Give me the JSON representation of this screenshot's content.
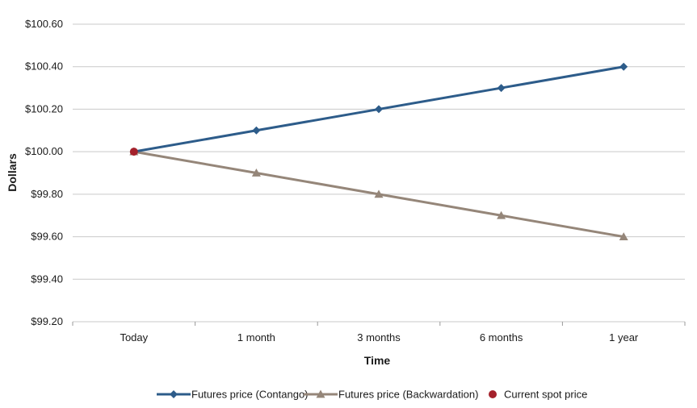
{
  "chart_data": {
    "type": "line",
    "categories": [
      "Today",
      "1 month",
      "3 months",
      "6 months",
      "1 year"
    ],
    "series": [
      {
        "name": "Futures price (Contango)",
        "values": [
          100.0,
          100.1,
          100.2,
          100.3,
          100.4
        ],
        "color": "#2d5c8a",
        "marker": "diamond"
      },
      {
        "name": "Futures price (Backwardation)",
        "values": [
          100.0,
          99.9,
          99.8,
          99.7,
          99.6
        ],
        "color": "#958679",
        "marker": "triangle"
      },
      {
        "name": "Current spot price",
        "values": [
          100.0,
          null,
          null,
          null,
          null
        ],
        "color": "#a4212b",
        "marker": "circle"
      }
    ],
    "xlabel": "Time",
    "ylabel": "Dollars",
    "ylim": [
      99.2,
      100.6
    ],
    "yticks": [
      99.2,
      99.4,
      99.6,
      99.8,
      100.0,
      100.2,
      100.4,
      100.6
    ],
    "ytick_labels": [
      "$99.20",
      "$99.40",
      "$99.60",
      "$99.80",
      "$100.00",
      "$100.20",
      "$100.40",
      "$100.60"
    ],
    "grid": true,
    "legend_position": "bottom"
  }
}
